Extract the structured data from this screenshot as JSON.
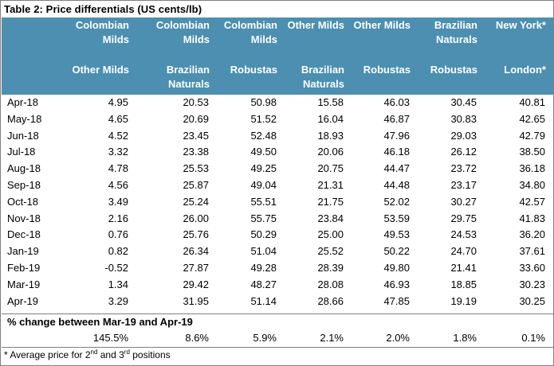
{
  "title": "Table 2:  Price differentials (US cents/lb)",
  "header": {
    "top": [
      "Colombian Milds",
      "Colombian Milds",
      "Colombian Milds",
      "Other Milds",
      "Other Milds",
      "Brazilian Naturals",
      "New York*"
    ],
    "bottom": [
      "Other Milds",
      "Brazilian Naturals",
      "Robustas",
      "Brazilian Naturals",
      "Robustas",
      "Robustas",
      "London*"
    ]
  },
  "rows": [
    {
      "month": "Apr-18",
      "values": [
        "4.95",
        "20.53",
        "50.98",
        "15.58",
        "46.03",
        "30.45",
        "40.81"
      ]
    },
    {
      "month": "May-18",
      "values": [
        "4.65",
        "20.69",
        "51.52",
        "16.04",
        "46.87",
        "30.83",
        "42.65"
      ]
    },
    {
      "month": "Jun-18",
      "values": [
        "4.52",
        "23.45",
        "52.48",
        "18.93",
        "47.96",
        "29.03",
        "42.79"
      ]
    },
    {
      "month": "Jul-18",
      "values": [
        "3.32",
        "23.38",
        "49.50",
        "20.06",
        "46.18",
        "26.12",
        "38.50"
      ]
    },
    {
      "month": "Aug-18",
      "values": [
        "4.78",
        "25.53",
        "49.25",
        "20.75",
        "44.47",
        "23.72",
        "36.18"
      ]
    },
    {
      "month": "Sep-18",
      "values": [
        "4.56",
        "25.87",
        "49.04",
        "21.31",
        "44.48",
        "23.17",
        "34.80"
      ]
    },
    {
      "month": "Oct-18",
      "values": [
        "3.49",
        "25.24",
        "55.51",
        "21.75",
        "52.02",
        "30.27",
        "42.57"
      ]
    },
    {
      "month": "Nov-18",
      "values": [
        "2.16",
        "26.00",
        "55.75",
        "23.84",
        "53.59",
        "29.75",
        "41.83"
      ]
    },
    {
      "month": "Dec-18",
      "values": [
        "0.76",
        "25.76",
        "50.29",
        "25.00",
        "49.53",
        "24.53",
        "36.20"
      ]
    },
    {
      "month": "Jan-19",
      "values": [
        "0.82",
        "26.34",
        "51.04",
        "25.52",
        "50.22",
        "24.70",
        "37.61"
      ]
    },
    {
      "month": "Feb-19",
      "values": [
        "-0.52",
        "27.87",
        "49.28",
        "28.39",
        "49.80",
        "21.41",
        "33.60"
      ]
    },
    {
      "month": "Mar-19",
      "values": [
        "1.34",
        "29.42",
        "48.27",
        "28.08",
        "46.93",
        "18.85",
        "30.23"
      ]
    },
    {
      "month": "Apr-19",
      "values": [
        "3.29",
        "31.95",
        "51.14",
        "28.66",
        "47.85",
        "19.19",
        "30.25"
      ]
    }
  ],
  "pct_change": {
    "label": "% change between Mar-19 and Apr-19",
    "values": [
      "145.5%",
      "8.6%",
      "5.9%",
      "2.1%",
      "2.0%",
      "1.8%",
      "0.1%"
    ]
  },
  "footnote": {
    "pre": "* Average price for 2",
    "sup1": "nd",
    "mid": " and 3",
    "sup2": "rd",
    "post": " positions"
  }
}
